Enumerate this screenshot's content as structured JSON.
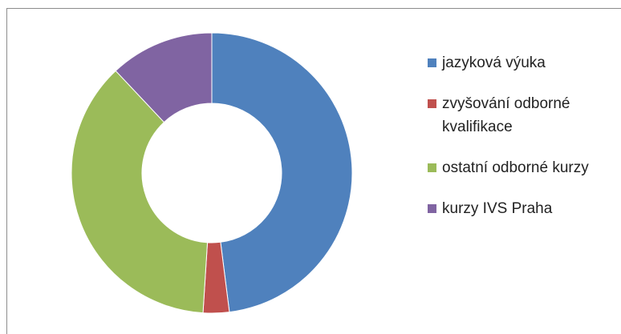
{
  "chart_data": {
    "type": "donut",
    "categories": [
      "jazyková výuka",
      "zvyšování odborné kvalifikace",
      "ostatní odborné kurzy",
      "kurzy IVS Praha"
    ],
    "values": [
      48,
      3,
      37,
      12
    ],
    "colors": [
      "#4f81bd",
      "#c0504d",
      "#9bbb59",
      "#8064a2"
    ],
    "legend": "right"
  }
}
